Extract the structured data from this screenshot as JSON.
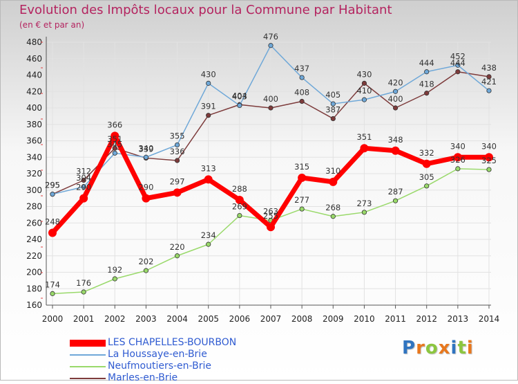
{
  "title": "Evolution des Impôts locaux pour la Commune par Habitant",
  "subtitle": "(en € et par an)",
  "logo": {
    "text": "Proxiti",
    "letters": [
      "P",
      "r",
      "o",
      "x",
      "i",
      "t",
      "i"
    ],
    "colors": [
      "#2f74c0",
      "#e8781e",
      "#8cc63f",
      "#e8781e",
      "#2f74c0",
      "#8cc63f",
      "#e8781e"
    ]
  },
  "chart_data": {
    "type": "line",
    "title": "Evolution des Impôts locaux pour la Commune par Habitant",
    "subtitle": "(en € et par an)",
    "xlabel": "",
    "ylabel": "",
    "x": [
      "2000",
      "2001",
      "2002",
      "2003",
      "2004",
      "2005",
      "2006",
      "2007",
      "2008",
      "2009",
      "2010",
      "2011",
      "2012",
      "2013",
      "2014"
    ],
    "ylim": [
      160,
      480
    ],
    "yticks": [
      "160",
      "180",
      "200",
      "220",
      "240",
      "260",
      "280",
      "300",
      "320",
      "340",
      "360",
      "380",
      "400",
      "420",
      "440",
      "460",
      "480"
    ],
    "grid": true,
    "legend_position": "bottom-left",
    "series": [
      {
        "name": "LES CHAPELLES-BOURBON",
        "color": "#ff0000",
        "values": [
          248,
          290,
          366,
          290,
          297,
          313,
          288,
          255,
          315,
          310,
          351,
          348,
          332,
          340,
          340
        ],
        "labels": [
          "248",
          "290",
          "366",
          "290",
          "297",
          "313",
          "288",
          "255",
          "315",
          "310",
          "351",
          "348",
          "332",
          "340",
          "340"
        ]
      },
      {
        "name": "La Houssaye-en-Brie",
        "color": "#6fa8d8",
        "values": [
          295,
          304,
          345,
          340,
          355,
          430,
          403,
          476,
          437,
          405,
          410,
          420,
          444,
          452,
          421
        ],
        "labels": [
          "295",
          "304",
          "345",
          "340",
          "355",
          "430",
          "403",
          "476",
          "437",
          "405",
          "410",
          "420",
          "444",
          "452",
          "421"
        ]
      },
      {
        "name": "Neufmoutiers-en-Brie",
        "color": "#99d96a",
        "values": [
          174,
          176,
          192,
          202,
          220,
          234,
          269,
          263,
          277,
          268,
          273,
          287,
          305,
          326,
          325
        ],
        "labels": [
          "174",
          "176",
          "192",
          "202",
          "220",
          "234",
          "269",
          "263",
          "277",
          "268",
          "273",
          "287",
          "305",
          "326",
          "325"
        ]
      },
      {
        "name": "Marles-en-Brie",
        "color": "#7d3b3b",
        "values": [
          295,
          312,
          351,
          339,
          336,
          391,
          404,
          400,
          408,
          387,
          430,
          400,
          418,
          444,
          438
        ],
        "labels": [
          "295",
          "312",
          "351",
          "339",
          "336",
          "391",
          "404",
          "400",
          "408",
          "387",
          "430",
          "400",
          "418",
          "444",
          "438"
        ]
      }
    ]
  }
}
